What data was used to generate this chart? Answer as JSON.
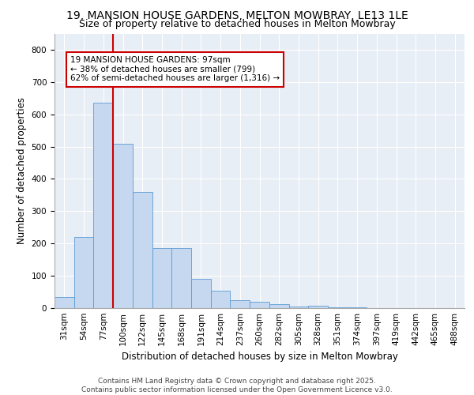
{
  "title_line1": "19, MANSION HOUSE GARDENS, MELTON MOWBRAY, LE13 1LE",
  "title_line2": "Size of property relative to detached houses in Melton Mowbray",
  "xlabel": "Distribution of detached houses by size in Melton Mowbray",
  "ylabel": "Number of detached properties",
  "categories": [
    "31sqm",
    "54sqm",
    "77sqm",
    "100sqm",
    "122sqm",
    "145sqm",
    "168sqm",
    "191sqm",
    "214sqm",
    "237sqm",
    "260sqm",
    "282sqm",
    "305sqm",
    "328sqm",
    "351sqm",
    "374sqm",
    "397sqm",
    "419sqm",
    "442sqm",
    "465sqm",
    "488sqm"
  ],
  "values": [
    35,
    220,
    635,
    510,
    360,
    185,
    185,
    90,
    55,
    25,
    20,
    12,
    5,
    7,
    3,
    2,
    1,
    0,
    0,
    0,
    0
  ],
  "bar_color": "#c5d8ef",
  "bar_edge_color": "#5b9bd5",
  "vline_color": "#cc0000",
  "annotation_text": "19 MANSION HOUSE GARDENS: 97sqm\n← 38% of detached houses are smaller (799)\n62% of semi-detached houses are larger (1,316) →",
  "annotation_box_color": "#cc0000",
  "ylim": [
    0,
    850
  ],
  "yticks": [
    0,
    100,
    200,
    300,
    400,
    500,
    600,
    700,
    800
  ],
  "background_color": "#e8eef5",
  "footer_line1": "Contains HM Land Registry data © Crown copyright and database right 2025.",
  "footer_line2": "Contains public sector information licensed under the Open Government Licence v3.0.",
  "title_fontsize": 10,
  "subtitle_fontsize": 9,
  "axis_label_fontsize": 8.5,
  "tick_fontsize": 7.5,
  "footer_fontsize": 6.5
}
